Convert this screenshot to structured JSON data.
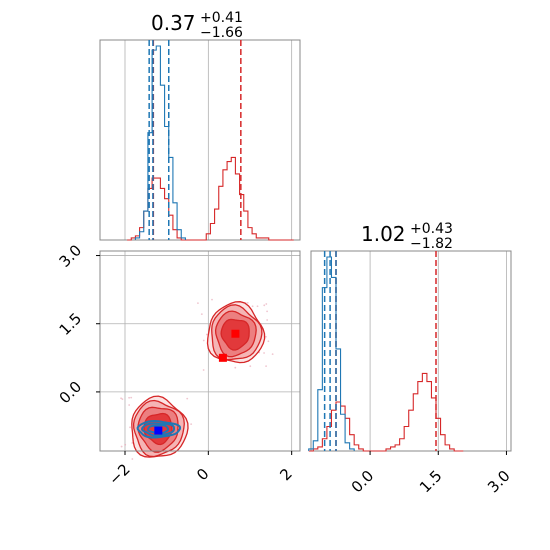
{
  "colors": {
    "red": "#d62728",
    "blue": "#1f77b4",
    "marker_red": "#ff0000",
    "marker_blue": "#0000ff",
    "grid": "#b0b0b0"
  },
  "titles": {
    "x": {
      "main": "0.37",
      "sup": "+0.41",
      "sub": "−1.66"
    },
    "y": {
      "main": "1.02",
      "sup": "+0.43",
      "sub": "−1.82"
    }
  },
  "chart_data": [
    {
      "type": "histogram",
      "panel": "marginal-x",
      "xlim": [
        -2.6,
        2.2
      ],
      "grid": true,
      "series": [
        {
          "color": "red",
          "x": [
            -1.9,
            -1.8,
            -1.7,
            -1.6,
            -1.5,
            -1.4,
            -1.3,
            -1.2,
            -1.1,
            -1.0,
            -0.9,
            -0.8,
            -0.7,
            -0.6,
            -0.5,
            -0.4,
            -0.3,
            -0.2,
            -0.1,
            0.0,
            0.1,
            0.2,
            0.3,
            0.4,
            0.5,
            0.6,
            0.7,
            0.8,
            0.9,
            1.0,
            1.1,
            1.2,
            1.3,
            1.4,
            1.5,
            1.6,
            1.7,
            1.8,
            1.9,
            2.0
          ],
          "values": [
            0,
            1,
            2,
            6,
            14,
            25,
            30,
            30,
            25,
            20,
            12,
            5,
            1,
            0,
            0,
            0,
            0,
            0,
            0,
            3,
            8,
            15,
            26,
            34,
            38,
            40,
            32,
            22,
            14,
            6,
            3,
            1,
            1,
            1,
            0,
            0,
            0,
            0,
            0,
            0
          ]
        },
        {
          "color": "blue",
          "x": [
            -1.7,
            -1.6,
            -1.5,
            -1.4,
            -1.3,
            -1.2,
            -1.1,
            -1.0,
            -0.9,
            -0.8,
            -0.7,
            -0.6
          ],
          "values": [
            1,
            4,
            14,
            52,
            92,
            94,
            75,
            55,
            40,
            18,
            5,
            1
          ]
        }
      ],
      "quantiles": [
        {
          "color": "red",
          "x": [
            -1.32,
            0.78
          ]
        },
        {
          "color": "blue",
          "x": [
            -1.42,
            -1.33,
            -0.95
          ]
        }
      ]
    },
    {
      "type": "scatter",
      "panel": "joint",
      "xlim": [
        -2.6,
        2.2
      ],
      "ylim": [
        -1.3,
        3.1
      ],
      "xticks": [
        "−2",
        "0",
        "2"
      ],
      "yticks": [
        "3.0",
        "1.5",
        "0.0"
      ],
      "grid": true,
      "truth_markers": [
        {
          "color": "red",
          "x": 0.65,
          "y": 1.28
        },
        {
          "color": "red",
          "x": 0.35,
          "y": 0.75
        },
        {
          "color": "blue",
          "x": -1.2,
          "y": -0.85
        }
      ],
      "contour_clusters": [
        {
          "color": "red",
          "cx": 0.65,
          "cy": 1.28
        },
        {
          "color": "red",
          "cx": -1.2,
          "cy": -0.8
        },
        {
          "color": "blue",
          "cx": -1.2,
          "cy": -0.82
        }
      ]
    },
    {
      "type": "histogram",
      "panel": "marginal-y",
      "xlim": [
        -1.3,
        3.1
      ],
      "xticks": [
        "0.0",
        "1.5",
        "3.0"
      ],
      "grid": true,
      "series": [
        {
          "color": "red",
          "x": [
            -1.3,
            -1.2,
            -1.1,
            -1.0,
            -0.9,
            -0.8,
            -0.7,
            -0.6,
            -0.5,
            -0.4,
            -0.3,
            -0.2,
            -0.1,
            0.0,
            0.1,
            0.2,
            0.3,
            0.4,
            0.5,
            0.6,
            0.7,
            0.8,
            0.9,
            1.0,
            1.1,
            1.2,
            1.3,
            1.4,
            1.5,
            1.6,
            1.7,
            1.8,
            1.9,
            2.0
          ],
          "values": [
            0,
            1,
            2,
            6,
            12,
            20,
            24,
            22,
            16,
            8,
            3,
            1,
            0,
            0,
            0,
            0,
            0,
            1,
            2,
            3,
            6,
            12,
            20,
            28,
            34,
            38,
            34,
            26,
            16,
            8,
            3,
            1,
            0,
            0
          ]
        },
        {
          "color": "blue",
          "x": [
            -1.3,
            -1.2,
            -1.1,
            -1.0,
            -0.9,
            -0.8,
            -0.7,
            -0.6,
            -0.5,
            -0.4
          ],
          "values": [
            1,
            5,
            30,
            80,
            95,
            85,
            50,
            18,
            4,
            1
          ]
        }
      ],
      "quantiles": [
        {
          "color": "red",
          "x": [
            -0.75,
            1.45
          ]
        },
        {
          "color": "blue",
          "x": [
            -1.0,
            -0.88,
            -0.75
          ]
        }
      ]
    }
  ]
}
